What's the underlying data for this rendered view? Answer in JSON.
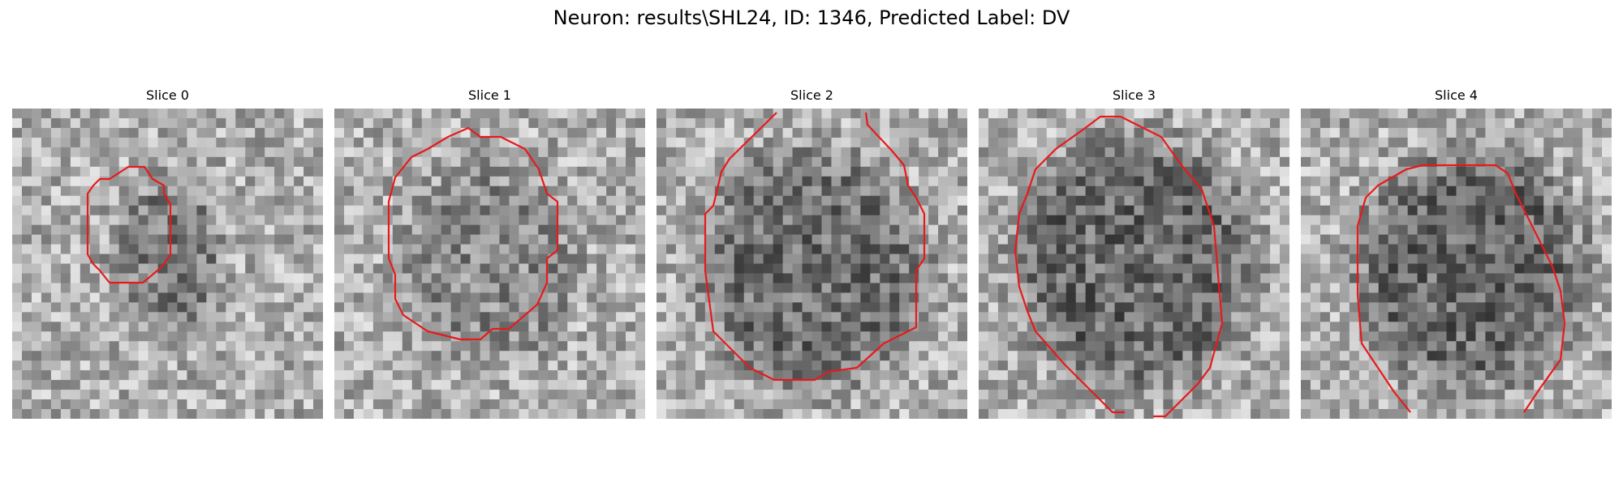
{
  "figure": {
    "title": "Neuron: results\\SHL24, ID: 1346, Predicted Label: DV"
  },
  "slices": [
    {
      "title": "Slice 0",
      "seed": 11,
      "center": [
        0.5,
        0.48
      ],
      "radius": [
        0.2,
        0.27
      ],
      "darkness": 0.35
    },
    {
      "title": "Slice 1",
      "seed": 23,
      "center": [
        0.5,
        0.5
      ],
      "radius": [
        0.32,
        0.35
      ],
      "darkness": 0.25
    },
    {
      "title": "Slice 2",
      "seed": 37,
      "center": [
        0.5,
        0.52
      ],
      "radius": [
        0.4,
        0.42
      ],
      "darkness": 0.45
    },
    {
      "title": "Slice 3",
      "seed": 41,
      "center": [
        0.5,
        0.5
      ],
      "radius": [
        0.42,
        0.44
      ],
      "darkness": 0.5
    },
    {
      "title": "Slice 4",
      "seed": 53,
      "center": [
        0.55,
        0.52
      ],
      "radius": [
        0.4,
        0.42
      ],
      "darkness": 0.5
    }
  ],
  "contour_color": "#e8191b"
}
